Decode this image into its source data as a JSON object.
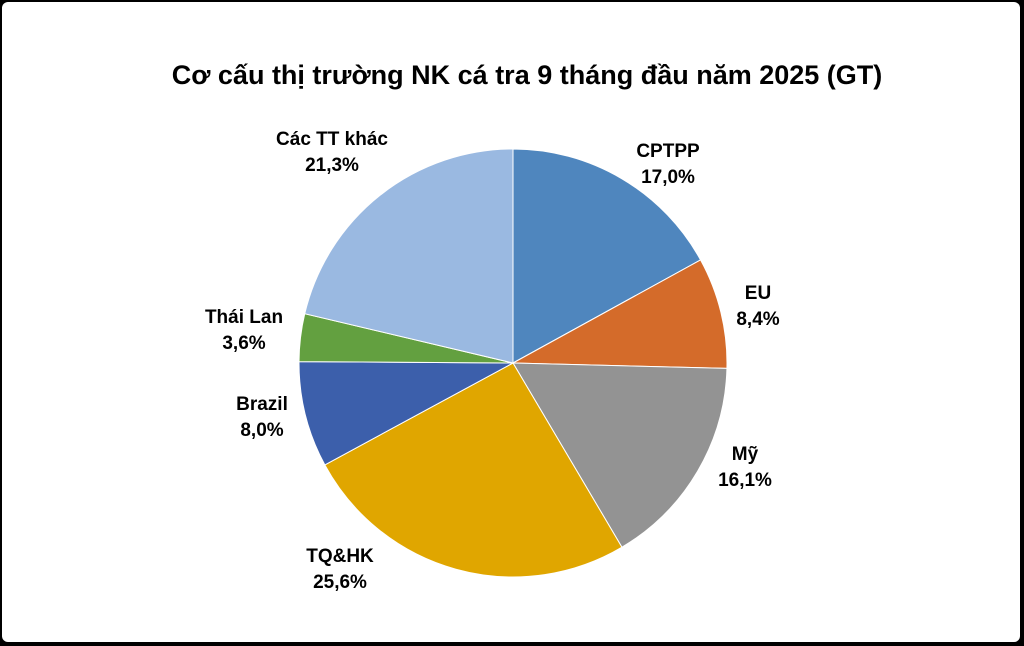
{
  "chart_data": {
    "type": "pie",
    "title": "Cơ cấu thị trường NK cá tra 9 tháng đầu năm 2025 (GT)",
    "categories": [
      "CPTPP",
      "EU",
      "Mỹ",
      "TQ&HK",
      "Brazil",
      "Thái Lan",
      "Các TT khác"
    ],
    "values": [
      17.0,
      8.4,
      16.1,
      25.6,
      8.0,
      3.6,
      21.3
    ],
    "value_labels": [
      "17,0%",
      "8,4%",
      "16,1%",
      "25,6%",
      "8,0%",
      "3,6%",
      "21,3%"
    ],
    "colors": [
      "#4f86be",
      "#d46b2a",
      "#939393",
      "#e0a600",
      "#3c5fab",
      "#63a040",
      "#9ab9e1"
    ]
  }
}
